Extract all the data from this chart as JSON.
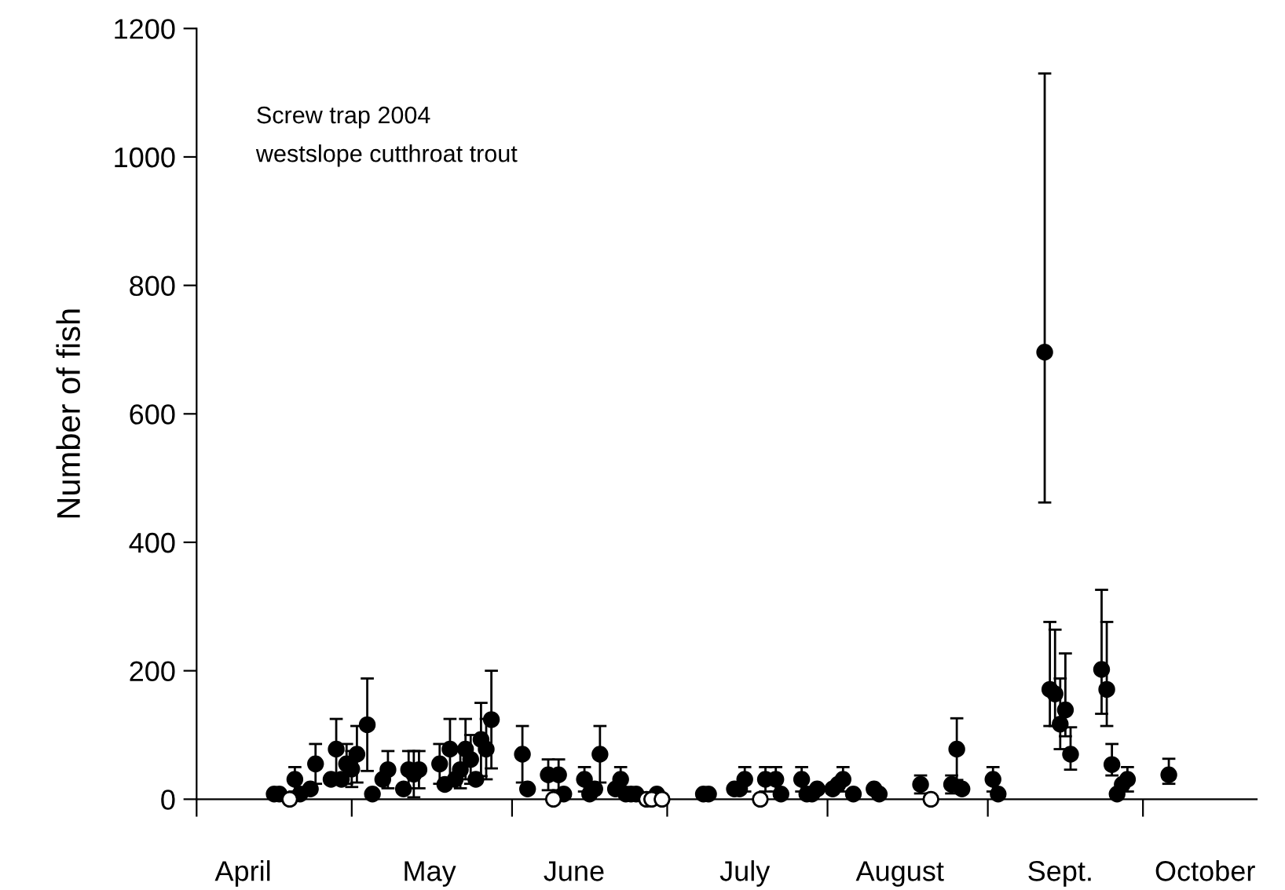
{
  "chart_data": {
    "type": "scatter",
    "ylabel": "Number of fish",
    "annotations": [
      "Screw trap 2004",
      "westslope cutthroat trout"
    ],
    "xlim": [
      "2004-04-01",
      "2004-10-23"
    ],
    "xticks": [
      {
        "value": "2004-04-01",
        "label": null
      },
      {
        "value": "2004-05-01",
        "label": null
      },
      {
        "value": "2004-06-01",
        "label": null
      },
      {
        "value": "2004-07-01",
        "label": null
      },
      {
        "value": "2004-08-01",
        "label": null
      },
      {
        "value": "2004-09-01",
        "label": null
      },
      {
        "value": "2004-10-01",
        "label": null
      },
      {
        "value": "2004-04-10",
        "label": "April"
      },
      {
        "value": "2004-05-16",
        "label": "May"
      },
      {
        "value": "2004-06-13",
        "label": "June"
      },
      {
        "value": "2004-07-16",
        "label": "July"
      },
      {
        "value": "2004-08-15",
        "label": "August"
      },
      {
        "value": "2004-09-15",
        "label": "Sept."
      },
      {
        "value": "2004-10-13",
        "label": "October"
      }
    ],
    "ylim": [
      0,
      1200
    ],
    "yticks": [
      0,
      200,
      400,
      600,
      800,
      1000,
      1200
    ],
    "grid": false,
    "marker": "circle",
    "series": [
      {
        "color": "#000000",
        "x": [
          "2004-04-16",
          "2004-04-17",
          "2004-04-20",
          "2004-04-21",
          "2004-04-23",
          "2004-04-24",
          "2004-04-27",
          "2004-04-28",
          "2004-04-29",
          "2004-04-30",
          "2004-05-01",
          "2004-05-02",
          "2004-05-04",
          "2004-05-05",
          "2004-05-07",
          "2004-05-08",
          "2004-05-11",
          "2004-05-12",
          "2004-05-13",
          "2004-05-14",
          "2004-05-18",
          "2004-05-19",
          "2004-05-20",
          "2004-05-21",
          "2004-05-22",
          "2004-05-23",
          "2004-05-24",
          "2004-05-25",
          "2004-05-26",
          "2004-05-27",
          "2004-05-28",
          "2004-06-03",
          "2004-06-04",
          "2004-06-08",
          "2004-06-10",
          "2004-06-11",
          "2004-06-15",
          "2004-06-16",
          "2004-06-17",
          "2004-06-18",
          "2004-06-21",
          "2004-06-22",
          "2004-06-23",
          "2004-06-24",
          "2004-06-25",
          "2004-06-29",
          "2004-07-08",
          "2004-07-09",
          "2004-07-14",
          "2004-07-15",
          "2004-07-16",
          "2004-07-20",
          "2004-07-22",
          "2004-07-23",
          "2004-07-27",
          "2004-07-28",
          "2004-07-29",
          "2004-07-30",
          "2004-08-02",
          "2004-08-03",
          "2004-08-04",
          "2004-08-06",
          "2004-08-10",
          "2004-08-11",
          "2004-08-19",
          "2004-08-25",
          "2004-08-26",
          "2004-08-27",
          "2004-09-02",
          "2004-09-03",
          "2004-09-12",
          "2004-09-13",
          "2004-09-14",
          "2004-09-15",
          "2004-09-16",
          "2004-09-17",
          "2004-09-23",
          "2004-09-24",
          "2004-09-25",
          "2004-09-26",
          "2004-09-27",
          "2004-09-28",
          "2004-10-06"
        ],
        "values": [
          8,
          8,
          31,
          8,
          16,
          55,
          31,
          78,
          31,
          55,
          47,
          70,
          116,
          8,
          31,
          46,
          16,
          46,
          39,
          46,
          55,
          23,
          78,
          31,
          46,
          78,
          62,
          31,
          93,
          78,
          124,
          70,
          16,
          38,
          38,
          8,
          31,
          8,
          16,
          70,
          16,
          31,
          8,
          8,
          8,
          8,
          8,
          8,
          16,
          16,
          31,
          31,
          31,
          8,
          31,
          8,
          8,
          16,
          16,
          23,
          31,
          8,
          16,
          8,
          23,
          23,
          78,
          16,
          31,
          8,
          696,
          171,
          164,
          117,
          139,
          70,
          202,
          171,
          54,
          8,
          23,
          31,
          38
        ],
        "errors": [
          null,
          null,
          19,
          null,
          null,
          31,
          null,
          47,
          null,
          31,
          28,
          44,
          72,
          null,
          null,
          29,
          null,
          29,
          36,
          29,
          31,
          null,
          47,
          null,
          29,
          47,
          38,
          null,
          57,
          47,
          76,
          44,
          null,
          24,
          24,
          null,
          19,
          null,
          null,
          44,
          null,
          19,
          null,
          null,
          null,
          null,
          null,
          null,
          null,
          null,
          19,
          19,
          19,
          null,
          19,
          null,
          null,
          null,
          null,
          null,
          19,
          null,
          null,
          null,
          14,
          14,
          48,
          null,
          19,
          null,
          [
            462,
            1130
          ],
          [
            114,
            276
          ],
          [
            114,
            264
          ],
          [
            78,
            188
          ],
          [
            98,
            227
          ],
          [
            46,
            112
          ],
          [
            133,
            326
          ],
          [
            114,
            276
          ],
          [
            37,
            86
          ],
          null,
          null,
          19,
          [
            24,
            63
          ]
        ]
      },
      {
        "color": "#ffffff",
        "x": [
          "2004-04-19",
          "2004-06-09",
          "2004-06-27",
          "2004-06-28",
          "2004-06-30",
          "2004-07-19",
          "2004-08-21"
        ],
        "values": [
          0,
          0,
          0,
          0,
          0,
          0,
          0
        ]
      }
    ]
  }
}
